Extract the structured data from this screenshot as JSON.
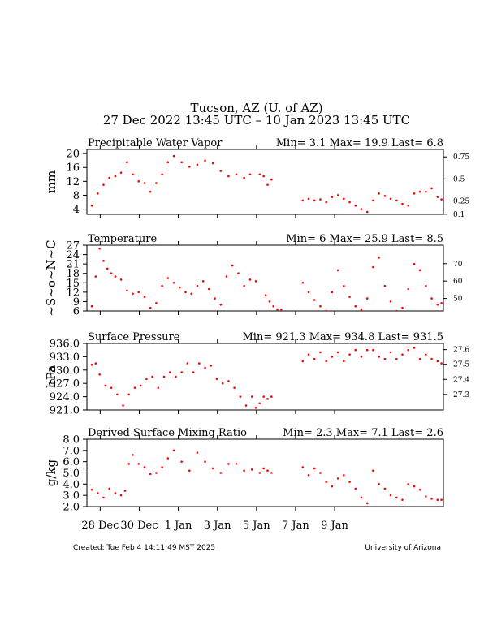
{
  "header": {
    "title": "Tucson, AZ (U. of AZ)",
    "subtitle": "27 Dec 2022 13:45 UTC – 10 Jan 2023 13:45 UTC"
  },
  "footer": {
    "created": "Created: Tue Feb  4 14:11:49 MST 2025",
    "institution": "University of Arizona"
  },
  "colors": {
    "data": "#ff0000",
    "axes": "#000000"
  },
  "chart_data": [
    {
      "type": "scatter",
      "title": "Precipitable Water Vapor",
      "ylabel": "mm",
      "ylim": [
        2.5,
        21.2
      ],
      "yticks": [
        4,
        8,
        12,
        16,
        20
      ],
      "y2label": "",
      "y2ticks": [
        {
          "label": "0.75",
          "value": 19.05
        },
        {
          "label": "0.5",
          "value": 12.7
        },
        {
          "label": "0.25",
          "value": 6.35
        },
        {
          "label": "0.1",
          "value": 2.54
        }
      ],
      "stats": "Min= 3.1 Max= 19.9 Last= 6.8",
      "series": [
        {
          "x": [
            0.0,
            0.3,
            0.6,
            0.9,
            1.2,
            1.5,
            1.8,
            2.1,
            2.4,
            2.7,
            3.0,
            3.3,
            3.6,
            3.9,
            4.2,
            4.6,
            5.0,
            5.4,
            5.8,
            6.2
          ],
          "y": [
            5.0,
            8.5,
            11.0,
            13.0,
            13.5,
            14.5,
            17.5,
            14.0,
            12.0,
            11.5,
            9.0,
            11.5,
            14.0,
            17.5,
            19.3,
            17.5,
            16.2,
            16.8,
            18.0,
            17.2
          ]
        },
        {
          "x": [
            6.6,
            7.0,
            7.4,
            7.8,
            8.1
          ],
          "y": [
            15.0,
            13.5,
            14.0,
            13.0,
            14.0
          ]
        },
        {
          "x": [
            8.6,
            8.8,
            9.0,
            9.2
          ],
          "y": [
            14.0,
            13.5,
            11.0,
            12.5
          ]
        },
        {
          "x": [
            10.8,
            11.1,
            11.4,
            11.7,
            12.0,
            12.3,
            12.6,
            12.9,
            13.2,
            13.5,
            13.8,
            14.1,
            14.4,
            14.7,
            15.0
          ],
          "y": [
            6.5,
            7.0,
            6.5,
            6.8,
            6.0,
            7.5,
            8.0,
            7.0,
            6.0,
            5.0,
            4.0,
            3.2,
            6.5,
            8.5,
            7.8
          ]
        },
        {
          "x": [
            15.3,
            15.6,
            15.9,
            16.2,
            16.5,
            16.8,
            17.1,
            17.4,
            17.7,
            17.9
          ],
          "y": [
            7.0,
            6.5,
            5.5,
            5.0,
            8.5,
            9.0,
            9.0,
            10.0,
            7.5,
            6.8
          ]
        }
      ]
    },
    {
      "type": "scatter",
      "title": "Temperature",
      "ylabel": "~S~o~N~C",
      "ylim": [
        6,
        27
      ],
      "yticks": [
        6,
        9,
        12,
        15,
        18,
        21,
        24,
        27
      ],
      "y2label": "",
      "y2ticks": [
        {
          "label": "70",
          "value": 21.1
        },
        {
          "label": "60",
          "value": 15.56
        },
        {
          "label": "50",
          "value": 10.0
        }
      ],
      "stats": "Min= 6 Max= 25.9 Last= 8.5",
      "series": [
        {
          "x": [
            0.0,
            0.2,
            0.4,
            0.6,
            0.8,
            1.0,
            1.2,
            1.5,
            1.8,
            2.1,
            2.4,
            2.7,
            3.0,
            3.3,
            3.6,
            3.9,
            4.2,
            4.5,
            4.8,
            5.1,
            5.4,
            5.7,
            6.0,
            6.3,
            6.6,
            6.9,
            7.2,
            7.5,
            7.8,
            8.1,
            8.4
          ],
          "y": [
            7.5,
            17.0,
            25.9,
            22.0,
            19.5,
            18.0,
            17.0,
            16.0,
            12.5,
            11.5,
            12.0,
            10.5,
            7.0,
            8.5,
            14.0,
            16.5,
            15.0,
            13.5,
            12.0,
            11.5,
            14.0,
            15.5,
            13.0,
            10.0,
            8.0,
            17.0,
            20.5,
            18.0,
            14.0,
            16.0,
            15.5
          ]
        },
        {
          "x": [
            8.9,
            9.1,
            9.3,
            9.5,
            9.7
          ],
          "y": [
            11.0,
            9.0,
            7.5,
            6.5,
            6.5
          ]
        },
        {
          "x": [
            10.8,
            11.1,
            11.4,
            11.7,
            12.0,
            12.3,
            12.6,
            12.9,
            13.2,
            13.5,
            13.8,
            14.1,
            14.4,
            14.7,
            15.0,
            15.3,
            15.6,
            15.9,
            16.2,
            16.5,
            16.8,
            17.1,
            17.4,
            17.7,
            17.9
          ],
          "y": [
            15.0,
            12.0,
            9.5,
            7.5,
            6.0,
            12.0,
            19.0,
            14.0,
            10.5,
            7.5,
            6.5,
            10.0,
            20.0,
            23.0,
            14.0,
            9.0,
            6.0,
            7.0,
            13.0,
            21.0,
            19.0,
            14.0,
            10.0,
            8.0,
            8.5
          ]
        }
      ]
    },
    {
      "type": "scatter",
      "title": "Surface Pressure",
      "ylabel": "hPa",
      "ylim": [
        921,
        936
      ],
      "yticks": [
        921.0,
        924.0,
        927.0,
        930.0,
        933.0,
        936.0
      ],
      "y2label": "",
      "y2ticks": [
        {
          "label": "27.6",
          "value": 934.6
        },
        {
          "label": "27.5",
          "value": 931.3
        },
        {
          "label": "27.4",
          "value": 927.9
        },
        {
          "label": "27.3",
          "value": 924.5
        }
      ],
      "stats": "Min= 921.3 Max= 934.8 Last= 931.5",
      "series": [
        {
          "x": [
            0.0,
            0.2,
            0.4,
            0.7,
            1.0,
            1.3,
            1.6,
            1.9,
            2.2,
            2.5,
            2.8,
            3.1,
            3.4,
            3.7,
            4.0,
            4.3,
            4.6,
            4.9,
            5.2,
            5.5,
            5.8,
            6.1,
            6.4,
            6.7,
            7.0,
            7.3,
            7.6,
            7.9,
            8.2
          ],
          "y": [
            931.2,
            931.5,
            929.0,
            926.5,
            926.0,
            924.5,
            922.0,
            924.5,
            926.0,
            926.5,
            928.0,
            928.5,
            926.0,
            928.5,
            929.5,
            928.5,
            929.5,
            931.5,
            929.5,
            931.5,
            930.5,
            931.0,
            928.0,
            927.0,
            927.5,
            926.0,
            924.0,
            922.0,
            924.0
          ]
        },
        {
          "x": [
            8.4,
            8.6,
            8.8,
            9.0,
            9.2
          ],
          "y": [
            921.5,
            922.5,
            924.0,
            923.5,
            924.0
          ]
        },
        {
          "x": [
            10.8,
            11.1,
            11.4,
            11.7,
            12.0,
            12.3,
            12.6,
            12.9,
            13.2,
            13.5,
            13.8,
            14.1,
            14.4,
            14.7,
            15.0,
            15.3,
            15.6,
            15.9,
            16.2,
            16.5,
            16.8,
            17.1,
            17.4,
            17.7,
            17.9
          ],
          "y": [
            932.0,
            933.5,
            932.5,
            934.0,
            932.0,
            933.0,
            934.0,
            932.0,
            933.5,
            934.5,
            933.0,
            934.5,
            934.5,
            933.0,
            932.5,
            934.0,
            932.5,
            933.5,
            934.5,
            935.0,
            932.5,
            933.5,
            932.5,
            932.0,
            931.5
          ]
        }
      ]
    },
    {
      "type": "scatter",
      "title": "Derived Surface Mixing Ratio",
      "ylabel": "g/kg",
      "ylim": [
        2.0,
        8.0
      ],
      "yticks": [
        2.0,
        3.0,
        4.0,
        5.0,
        6.0,
        7.0,
        8.0
      ],
      "stats": "Min= 2.3 Max= 7.1 Last= 2.6",
      "series": [
        {
          "x": [
            0.0,
            0.3,
            0.6,
            0.9,
            1.2,
            1.5,
            1.7
          ],
          "y": [
            3.5,
            3.2,
            2.8,
            3.6,
            3.2,
            3.0,
            3.4
          ]
        },
        {
          "x": [
            1.9,
            2.1,
            2.4,
            2.7,
            3.0,
            3.3,
            3.6,
            3.9,
            4.2,
            4.6,
            5.0,
            5.4,
            5.8,
            6.2,
            6.6,
            7.0,
            7.4,
            7.8,
            8.2
          ],
          "y": [
            5.8,
            6.6,
            5.8,
            5.5,
            4.9,
            5.0,
            5.5,
            6.3,
            7.0,
            6.0,
            5.2,
            6.8,
            6.0,
            5.4,
            5.0,
            5.8,
            5.8,
            5.2,
            5.3
          ]
        },
        {
          "x": [
            8.6,
            8.8,
            9.0,
            9.2
          ],
          "y": [
            5.0,
            5.4,
            5.2,
            5.0
          ]
        },
        {
          "x": [
            10.8,
            11.1,
            11.4,
            11.7,
            12.0,
            12.3,
            12.6,
            12.9,
            13.2,
            13.5,
            13.8,
            14.1,
            14.4,
            14.7,
            15.0,
            15.3,
            15.6,
            15.9,
            16.2,
            16.5,
            16.8,
            17.1,
            17.4,
            17.7,
            17.9
          ],
          "y": [
            5.5,
            4.8,
            5.4,
            5.0,
            4.2,
            3.8,
            4.5,
            4.8,
            4.2,
            3.6,
            2.8,
            2.3,
            5.2,
            4.0,
            3.6,
            3.0,
            2.8,
            2.6,
            4.0,
            3.8,
            3.5,
            2.9,
            2.7,
            2.6,
            2.6
          ]
        }
      ]
    }
  ],
  "xaxis": {
    "range_days": [
      -0.25,
      18.0
    ],
    "ticks": [
      {
        "label": "28 Dec",
        "day": 0.43
      },
      {
        "label": "30 Dec",
        "day": 2.43
      },
      {
        "label": "1 Jan",
        "day": 4.43
      },
      {
        "label": "3 Jan",
        "day": 6.43
      },
      {
        "label": "5 Jan",
        "day": 8.43
      },
      {
        "label": "7 Jan",
        "day": 10.43
      },
      {
        "label": "9 Jan",
        "day": 12.43
      }
    ]
  }
}
